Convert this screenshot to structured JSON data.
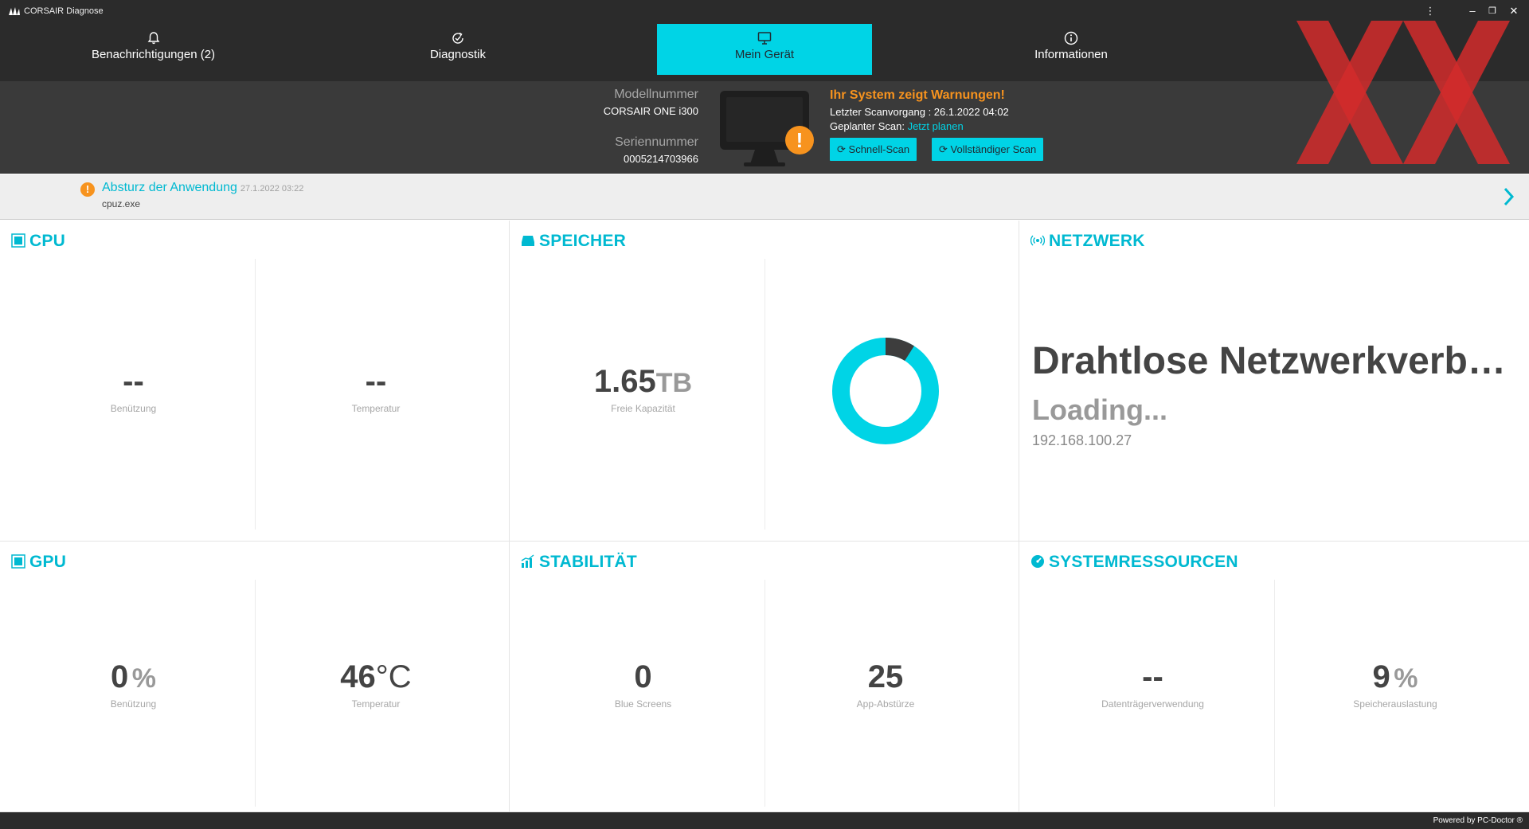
{
  "app": {
    "title": "CORSAIR Diagnose"
  },
  "window_controls": {
    "menu": "⋮",
    "minimize": "–",
    "restore": "❐",
    "close": "✕"
  },
  "nav": {
    "items": [
      {
        "label": "Benachrichtigungen (2)",
        "icon": "bell-icon",
        "active": false
      },
      {
        "label": "Diagnostik",
        "icon": "diagnostics-icon",
        "active": false
      },
      {
        "label": "Mein Gerät",
        "icon": "monitor-icon",
        "active": true
      },
      {
        "label": "Informationen",
        "icon": "info-icon",
        "active": false
      }
    ]
  },
  "device": {
    "model_label": "Modellnummer",
    "model_value": "CORSAIR ONE i300",
    "serial_label": "Seriennummer",
    "serial_value": "0005214703966",
    "warning_title": "Ihr System zeigt Warnungen!",
    "last_scan": "Letzter Scanvorgang : 26.1.2022 04:02",
    "planned_scan_label": "Geplanter Scan:",
    "planned_scan_link": "Jetzt planen",
    "quick_scan_button": "Schnell-Scan",
    "full_scan_button": "Vollständiger Scan"
  },
  "notification": {
    "title": "Absturz der Anwendung",
    "time": "27.1.2022 03:22",
    "subtitle": "cpuz.exe"
  },
  "panels": {
    "cpu": {
      "title": "CPU",
      "usage_value": "--",
      "usage_label": "Benützung",
      "temp_value": "--",
      "temp_label": "Temperatur"
    },
    "storage": {
      "title": "SPEICHER",
      "free_value": "1.65",
      "free_unit": "TB",
      "free_label": "Freie Kapazität",
      "used_fraction": 0.09
    },
    "network": {
      "title": "NETZWERK",
      "name": "Drahtlose Netzwerkverbindung",
      "status": "Loading...",
      "ip": "192.168.100.27"
    },
    "gpu": {
      "title": "GPU",
      "usage_value": "0",
      "usage_unit": "%",
      "usage_label": "Benützung",
      "temp_value": "46",
      "temp_unit": "°C",
      "temp_label": "Temperatur"
    },
    "stability": {
      "title": "STABILITÄT",
      "bluescreens_value": "0",
      "bluescreens_label": "Blue Screens",
      "crashes_value": "25",
      "crashes_label": "App-Abstürze"
    },
    "resources": {
      "title": "SYSTEMRESSOURCEN",
      "disk_value": "--",
      "disk_label": "Datenträgerverwendung",
      "mem_value": "9",
      "mem_unit": "%",
      "mem_label": "Speicherauslastung"
    }
  },
  "footer": {
    "text": "Powered by PC-Doctor ®"
  },
  "colors": {
    "accent": "#00d4e6",
    "warning": "#f7931e",
    "dark": "#2b2b2b",
    "header": "#3a3a3a",
    "donut_used": "#3d3d3d"
  }
}
